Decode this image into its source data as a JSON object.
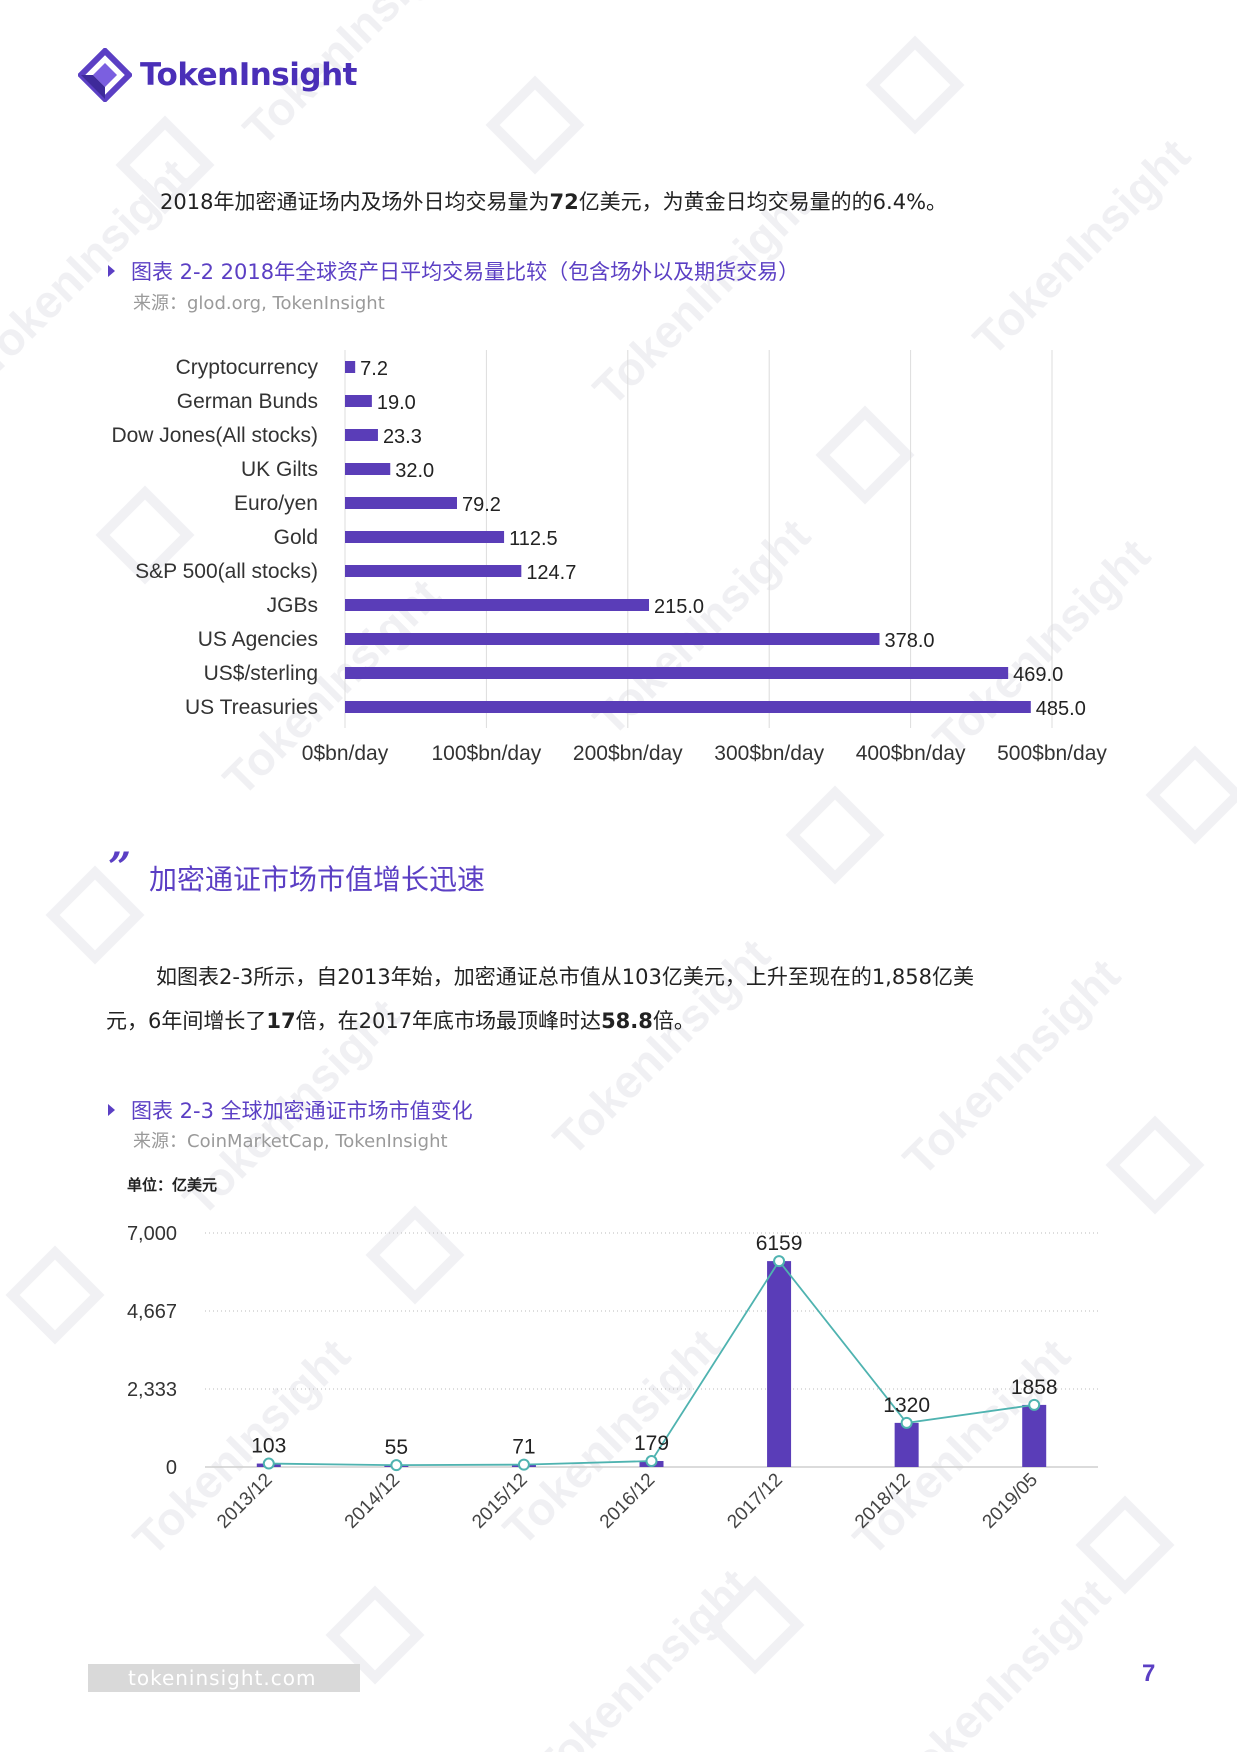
{
  "brand": {
    "name": "TokenInsight"
  },
  "intro_paragraph": {
    "before": "2018年加密通证场内及场外日均交易量为",
    "bold": "72",
    "after": "亿美元，为黄金日均交易量的的6.4%。"
  },
  "figure1": {
    "title": "图表 2-2 2018年全球资产日平均交易量比较（包含场外以及期货交易）",
    "source": "来源：glod.org, TokenInsight"
  },
  "section": {
    "quote": "”",
    "title": "加密通证市场市值增长迅速"
  },
  "body_paragraph": {
    "p1": "如图表2-3所示，自2013年始，加密通证总市值从103亿美元，上升至现在的1,858亿美",
    "p2_a": "元，6年间增长了",
    "p2_b1": "17",
    "p2_c": "倍，在2017年底市场最顶峰时达",
    "p2_b2": "58.8",
    "p2_d": "倍。"
  },
  "figure2": {
    "title": "图表 2-3 全球加密通证市场市值变化",
    "source": "来源：CoinMarketCap, TokenInsight"
  },
  "footer": {
    "url": "tokeninsight.com",
    "page": "7"
  },
  "colors": {
    "accent": "#5b3fc4",
    "bar": "#5a3db8",
    "line": "#4fb3b0"
  },
  "chart_data": [
    {
      "type": "bar",
      "orientation": "horizontal",
      "categories": [
        "Cryptocurrency",
        "German Bunds",
        "Dow Jones(All stocks)",
        "UK Gilts",
        "Euro/yen",
        "Gold",
        "S&P 500(all stocks)",
        "JGBs",
        "US Agencies",
        "US$/sterling",
        "US Treasuries"
      ],
      "values": [
        7.2,
        19.0,
        23.3,
        32.0,
        79.2,
        112.5,
        124.7,
        215.0,
        378.0,
        469.0,
        485.0
      ],
      "value_labels": [
        "7.2",
        "19.0",
        "23.3",
        "32.0",
        "79.2",
        "112.5",
        "124.7",
        "215.0",
        "378.0",
        "469.0",
        "485.0"
      ],
      "xticks": [
        "0$bn/day",
        "100$bn/day",
        "200$bn/day",
        "300$bn/day",
        "400$bn/day",
        "500$bn/day"
      ],
      "xlim": [
        0,
        500
      ],
      "grid": "vertical"
    },
    {
      "type": "bar+line",
      "unit_label": "单位：亿美元",
      "categories": [
        "2013/12",
        "2014/12",
        "2015/12",
        "2016/12",
        "2017/12",
        "2018/12",
        "2019/05"
      ],
      "values": [
        103,
        55,
        71,
        179,
        6159,
        1320,
        1858
      ],
      "value_labels": [
        "103",
        "55",
        "71",
        "179",
        "6159",
        "1320",
        "1858"
      ],
      "yticks": [
        "0",
        "2,333",
        "4,667",
        "7,000"
      ],
      "ylim": [
        0,
        7000
      ],
      "grid": "horizontal-dotted"
    }
  ]
}
